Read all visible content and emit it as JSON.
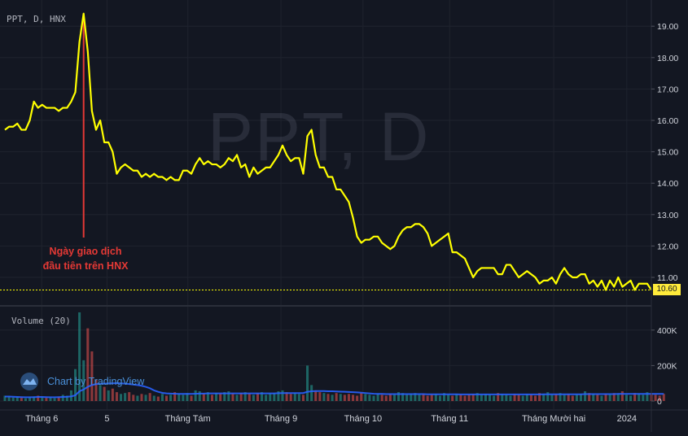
{
  "header": {
    "title": "PPT, D, HNX",
    "watermark": "PPT, D"
  },
  "annotation": {
    "line1": "Ngày giao dịch",
    "line2": "đầu tiên trên HNX"
  },
  "volume_title": "Volume (20)",
  "attribution": "Chart by TradingView",
  "colors": {
    "background": "#131722",
    "price_line": "#ffff00",
    "annotation": "#e53935",
    "volume_up": "#26a69a",
    "volume_down": "#ef5350",
    "volume_ma": "#2962ff"
  },
  "chart_data": [
    {
      "type": "line",
      "title": "PPT, D, HNX",
      "x_tick_labels": [
        "Tháng 6",
        "5",
        "Tháng Tám",
        "Tháng 9",
        "Tháng 10",
        "Tháng 11",
        "Tháng Mười hai",
        "2024"
      ],
      "y_tick_labels": [
        "11.00",
        "12.00",
        "13.00",
        "14.00",
        "15.00",
        "16.00",
        "17.00",
        "18.00",
        "19.00"
      ],
      "ylim": [
        10.2,
        19.6
      ],
      "grid": true,
      "last_price_label": "10.60",
      "series": [
        {
          "values": [
            15.7,
            15.8,
            15.8,
            15.9,
            15.7,
            15.7,
            16.0,
            16.6,
            16.4,
            16.5,
            16.4,
            16.4,
            16.4,
            16.3,
            16.4,
            16.4,
            16.6,
            16.9,
            18.5,
            19.4,
            18.2,
            16.3,
            15.7,
            16.0,
            15.3,
            15.3,
            15.0,
            14.3,
            14.5,
            14.6,
            14.5,
            14.4,
            14.4,
            14.2,
            14.3,
            14.2,
            14.3,
            14.2,
            14.2,
            14.1,
            14.2,
            14.1,
            14.1,
            14.4,
            14.4,
            14.3,
            14.6,
            14.8,
            14.6,
            14.7,
            14.6,
            14.6,
            14.5,
            14.6,
            14.8,
            14.7,
            14.9,
            14.5,
            14.6,
            14.2,
            14.5,
            14.3,
            14.4,
            14.5,
            14.5,
            14.7,
            14.9,
            15.2,
            14.9,
            14.7,
            14.8,
            14.8,
            14.3,
            15.5,
            15.7,
            14.9,
            14.5,
            14.5,
            14.2,
            14.2,
            13.8,
            13.8,
            13.6,
            13.4,
            12.9,
            12.3,
            12.1,
            12.2,
            12.2,
            12.3,
            12.3,
            12.1,
            12.0,
            11.9,
            12.0,
            12.3,
            12.5,
            12.6,
            12.6,
            12.7,
            12.7,
            12.6,
            12.4,
            12.0,
            12.1,
            12.2,
            12.3,
            12.4,
            11.8,
            11.8,
            11.7,
            11.6,
            11.3,
            11.0,
            11.2,
            11.3,
            11.3,
            11.3,
            11.3,
            11.1,
            11.1,
            11.4,
            11.4,
            11.2,
            11.0,
            11.1,
            11.2,
            11.1,
            11.0,
            10.8,
            10.9,
            10.9,
            11.0,
            10.8,
            11.1,
            11.3,
            11.1,
            11.0,
            11.0,
            11.1,
            11.1,
            10.8,
            10.9,
            10.7,
            10.9,
            10.6,
            10.9,
            10.7,
            11.0,
            10.7,
            10.8,
            10.9,
            10.6,
            10.8,
            10.8,
            10.8,
            10.6
          ]
        }
      ]
    },
    {
      "type": "bar",
      "title": "Volume (20)",
      "y_tick_labels": [
        "0",
        "200K",
        "400K"
      ],
      "ylim": [
        0,
        500000
      ],
      "series": [
        {
          "name": "Volume",
          "values": [
            30000,
            25000,
            20000,
            22000,
            18000,
            15000,
            20000,
            25000,
            30000,
            22000,
            18000,
            20000,
            16000,
            25000,
            35000,
            30000,
            60000,
            180000,
            500000,
            230000,
            410000,
            280000,
            120000,
            90000,
            80000,
            60000,
            70000,
            50000,
            40000,
            45000,
            50000,
            35000,
            30000,
            40000,
            35000,
            45000,
            30000,
            25000,
            40000,
            30000,
            35000,
            50000,
            40000,
            35000,
            45000,
            30000,
            60000,
            55000,
            40000,
            50000,
            35000,
            45000,
            40000,
            50000,
            55000,
            40000,
            35000,
            45000,
            50000,
            40000,
            35000,
            45000,
            50000,
            35000,
            40000,
            45000,
            55000,
            60000,
            50000,
            40000,
            45000,
            40000,
            35000,
            200000,
            90000,
            60000,
            50000,
            45000,
            40000,
            35000,
            45000,
            40000,
            35000,
            40000,
            35000,
            30000,
            45000,
            40000,
            35000,
            30000,
            40000,
            35000,
            30000,
            40000,
            35000,
            50000,
            45000,
            35000,
            40000,
            45000,
            35000,
            40000,
            30000,
            35000,
            40000,
            30000,
            45000,
            35000,
            30000,
            40000,
            35000,
            30000,
            35000,
            40000,
            45000,
            35000,
            40000,
            35000,
            30000,
            45000,
            40000,
            35000,
            30000,
            40000,
            35000,
            30000,
            40000,
            35000,
            30000,
            45000,
            40000,
            50000,
            35000,
            40000,
            45000,
            35000,
            40000,
            30000,
            35000,
            40000,
            55000,
            45000,
            40000,
            35000,
            30000,
            40000,
            35000,
            45000,
            40000,
            55000,
            35000,
            30000,
            45000,
            40000,
            35000,
            50000,
            45000,
            35000,
            30000,
            40000
          ]
        },
        {
          "name": "MA 20",
          "values": [
            25000,
            25000,
            24000,
            23000,
            22000,
            21000,
            21000,
            22000,
            23000,
            23000,
            22000,
            21000,
            21000,
            22000,
            23000,
            24000,
            26000,
            32000,
            55000,
            65000,
            80000,
            90000,
            95000,
            97000,
            98000,
            99000,
            100000,
            101000,
            100000,
            98000,
            96000,
            93000,
            90000,
            86000,
            80000,
            72000,
            60000,
            52000,
            46000,
            43000,
            42000,
            41000,
            40000,
            40000,
            40000,
            40000,
            41000,
            42000,
            42000,
            43000,
            43000,
            43000,
            43000,
            43000,
            43000,
            43000,
            43000,
            43000,
            43000,
            43000,
            43000,
            43000,
            43000,
            43000,
            43000,
            43000,
            44000,
            45000,
            45000,
            45000,
            45000,
            45000,
            45000,
            52000,
            55000,
            56000,
            56000,
            56000,
            55000,
            55000,
            54000,
            53000,
            52000,
            51000,
            50000,
            49000,
            47000,
            45000,
            43000,
            41000,
            40000,
            40000,
            39000,
            39000,
            39000,
            39000,
            39000,
            39000,
            39000,
            39000,
            39000,
            39000,
            38000,
            38000,
            38000,
            38000,
            38000,
            38000,
            38000,
            38000,
            37000,
            37000,
            37000,
            37000,
            37000,
            37000,
            37000,
            37000,
            37000,
            37000,
            37000,
            37000,
            37000,
            37000,
            37000,
            37000,
            37000,
            37000,
            37000,
            37000,
            38000,
            38000,
            38000,
            38000,
            38000,
            38000,
            38000,
            38000,
            38000,
            38000,
            39000,
            39000,
            39000,
            39000,
            39000,
            39000,
            39000,
            39000,
            40000,
            40000,
            40000,
            40000,
            40000,
            40000,
            40000,
            40000,
            40000,
            40000,
            40000,
            40000
          ]
        }
      ]
    }
  ]
}
